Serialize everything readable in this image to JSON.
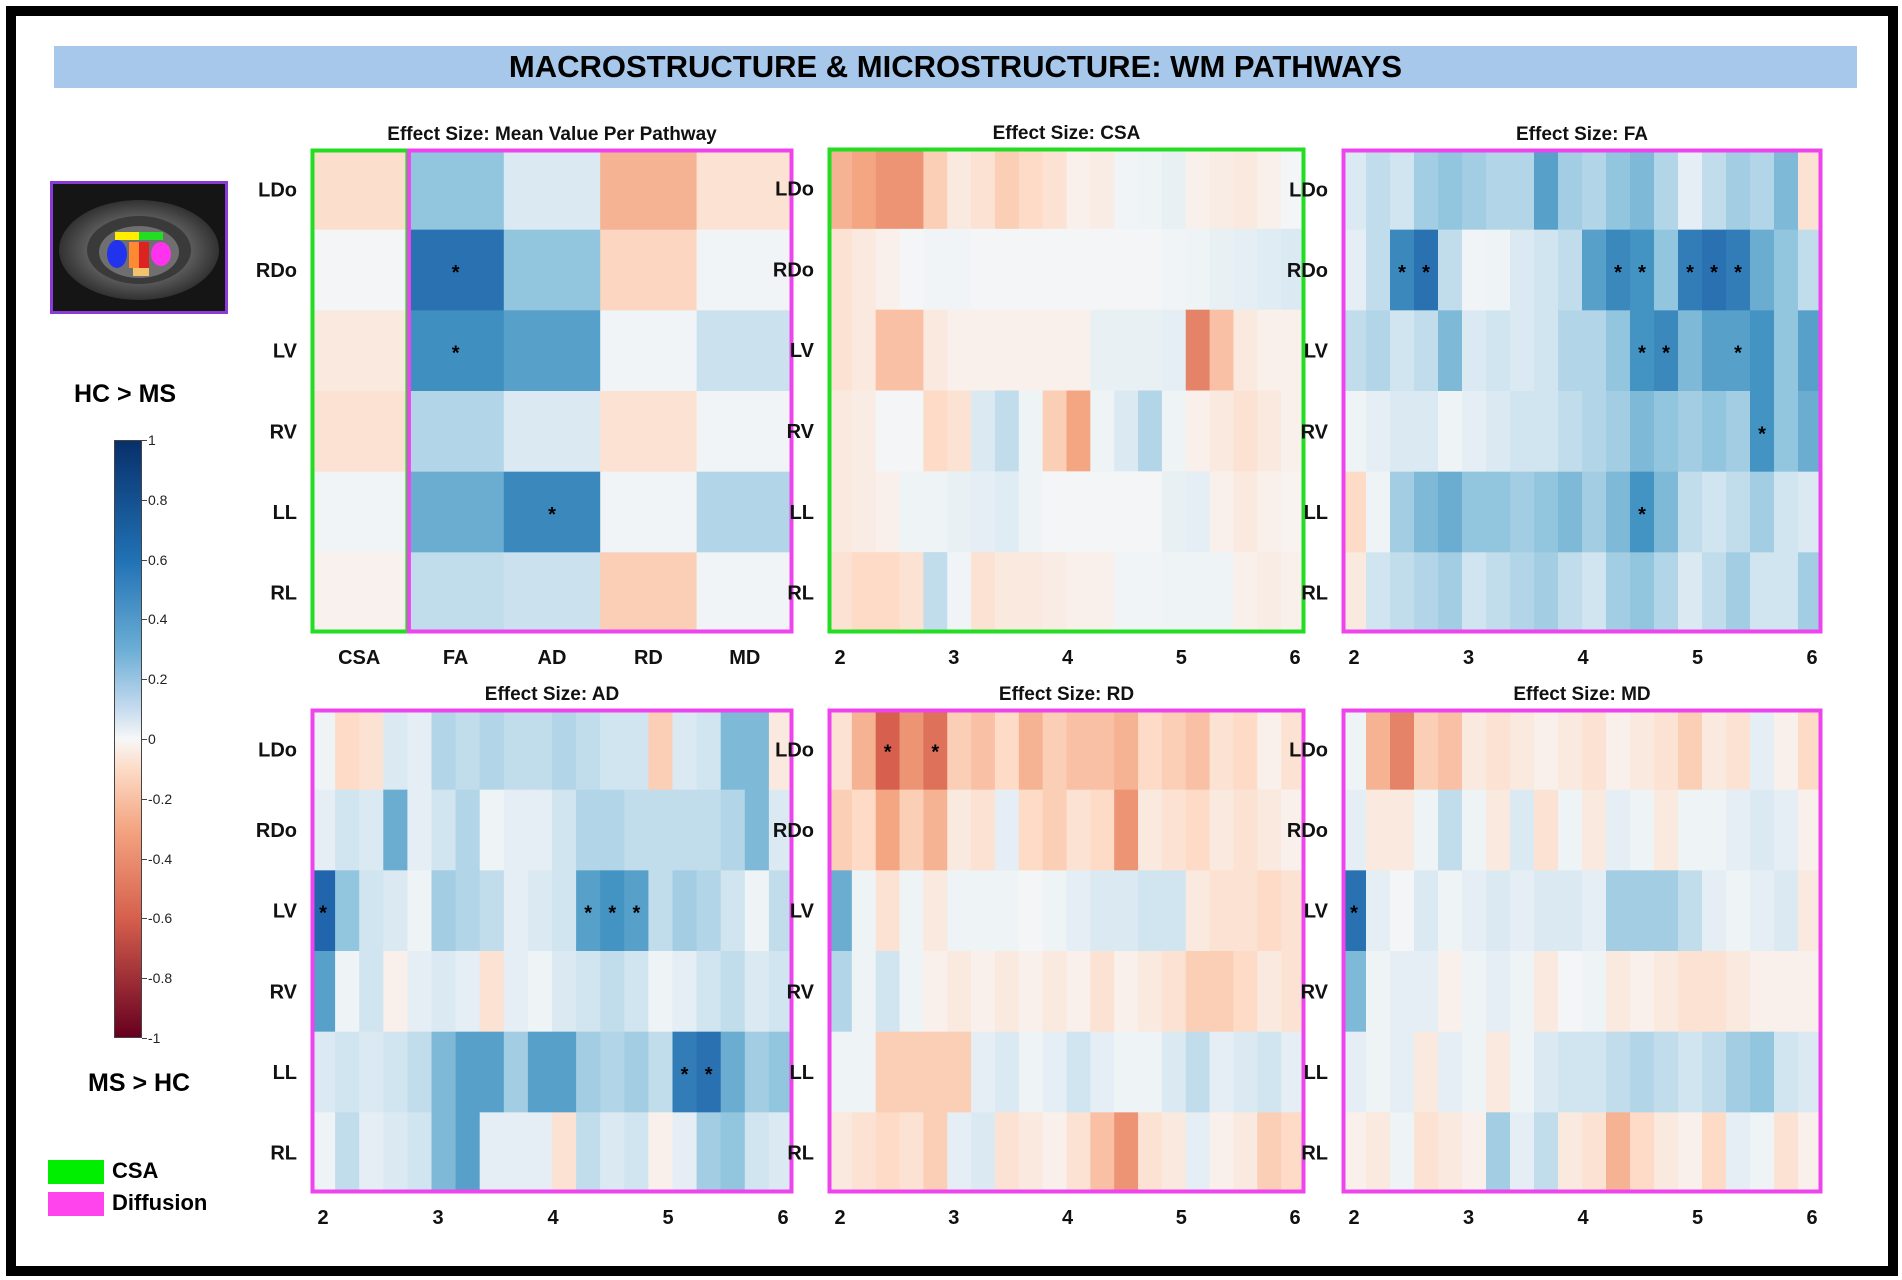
{
  "banner_title": "MACROSTRUCTURE & MICROSTRUCTURE: WM PATHWAYS",
  "colorbar": {
    "top_label": "HC > MS",
    "bottom_label": "MS > HC",
    "ticks": [
      "1",
      "0.8",
      "0.6",
      "0.4",
      "0.2",
      "0",
      "-0.2",
      "-0.4",
      "-0.6",
      "-0.8",
      "-1"
    ]
  },
  "legend": [
    {
      "label": "CSA",
      "color": "#00ee00"
    },
    {
      "label": "Diffusion",
      "color": "#ff44ee"
    }
  ],
  "colors": {
    "csa_border": "#22dd22",
    "diffusion_border": "#ee44ee",
    "thumb_border": "#8a3ad6"
  },
  "chart_data": [
    {
      "type": "heatmap",
      "title": "Effect Size: Mean Value Per Pathway",
      "rows": [
        "LDo",
        "RDo",
        "LV",
        "RV",
        "LL",
        "RL"
      ],
      "columns": [
        "CSA",
        "FA",
        "AD",
        "RD",
        "MD"
      ],
      "values": [
        [
          -0.18,
          0.4,
          0.15,
          -0.35,
          -0.15
        ],
        [
          0.02,
          0.75,
          0.4,
          -0.22,
          0.03
        ],
        [
          -0.1,
          0.62,
          0.55,
          0.03,
          0.22
        ],
        [
          -0.15,
          0.3,
          0.15,
          -0.15,
          0.03
        ],
        [
          0.03,
          0.5,
          0.65,
          0.03,
          0.3
        ],
        [
          -0.04,
          0.25,
          0.22,
          -0.25,
          0.03
        ]
      ],
      "significant": [
        [
          1,
          1
        ],
        [
          2,
          1
        ],
        [
          4,
          2
        ]
      ],
      "zlim": [
        -1,
        1
      ]
    },
    {
      "type": "heatmap",
      "title": "Effect Size: CSA",
      "rows": [
        "LDo",
        "RDo",
        "LV",
        "RV",
        "LL",
        "RL"
      ],
      "x": [
        2,
        2.2,
        2.4,
        2.6,
        2.8,
        3,
        3.2,
        3.4,
        3.6,
        3.8,
        4,
        4.2,
        4.4,
        4.6,
        4.8,
        5,
        5.2,
        5.4,
        5.6,
        5.8
      ],
      "x_ticks": [
        "2",
        "3",
        "4",
        "5",
        "6"
      ],
      "values": [
        [
          -0.35,
          -0.4,
          -0.45,
          -0.45,
          -0.25,
          -0.1,
          -0.15,
          -0.25,
          -0.2,
          -0.15,
          -0.05,
          -0.08,
          0.03,
          0.05,
          0.08,
          -0.05,
          -0.08,
          -0.1,
          -0.05,
          0.02
        ],
        [
          -0.15,
          -0.1,
          -0.05,
          0.02,
          0.03,
          0.03,
          0.02,
          0.02,
          0.02,
          0.02,
          0.02,
          0.02,
          0.02,
          0.02,
          0.03,
          0.05,
          0.08,
          0.1,
          0.12,
          0.15
        ],
        [
          -0.15,
          -0.1,
          -0.3,
          -0.3,
          -0.1,
          -0.05,
          -0.05,
          -0.05,
          -0.05,
          -0.05,
          -0.05,
          0.08,
          0.08,
          0.08,
          0.1,
          -0.5,
          -0.3,
          -0.1,
          -0.05,
          -0.05
        ],
        [
          -0.1,
          -0.08,
          0.02,
          0.02,
          -0.2,
          -0.15,
          0.15,
          0.25,
          0.05,
          -0.25,
          -0.4,
          0.05,
          0.15,
          0.3,
          0.05,
          -0.05,
          -0.1,
          -0.15,
          -0.1,
          -0.05
        ],
        [
          -0.1,
          -0.08,
          -0.05,
          0.05,
          0.05,
          0.08,
          0.1,
          0.12,
          0.05,
          0.02,
          0.02,
          0.02,
          0.02,
          0.02,
          0.08,
          0.1,
          -0.05,
          -0.1,
          -0.05,
          -0.03
        ],
        [
          -0.15,
          -0.2,
          -0.2,
          -0.15,
          0.25,
          0.03,
          -0.15,
          -0.1,
          -0.1,
          -0.08,
          -0.05,
          -0.05,
          0.03,
          0.03,
          0.05,
          0.05,
          0.05,
          -0.05,
          -0.08,
          -0.05
        ]
      ],
      "significant": [],
      "zlim": [
        -1,
        1
      ]
    },
    {
      "type": "heatmap",
      "title": "Effect Size: FA",
      "rows": [
        "LDo",
        "RDo",
        "LV",
        "RV",
        "LL",
        "RL"
      ],
      "x": [
        2,
        2.2,
        2.4,
        2.6,
        2.8,
        3,
        3.2,
        3.4,
        3.6,
        3.8,
        4,
        4.2,
        4.4,
        4.6,
        4.8,
        5,
        5.2,
        5.4,
        5.6,
        5.8
      ],
      "x_ticks": [
        "2",
        "3",
        "4",
        "5",
        "6"
      ],
      "values": [
        [
          0.15,
          0.25,
          0.2,
          0.35,
          0.4,
          0.35,
          0.3,
          0.3,
          0.55,
          0.35,
          0.3,
          0.4,
          0.45,
          0.3,
          0.1,
          0.25,
          0.35,
          0.3,
          0.45,
          -0.15
        ],
        [
          0.1,
          0.25,
          0.65,
          0.75,
          0.25,
          0.03,
          0.05,
          0.15,
          0.2,
          0.25,
          0.55,
          0.65,
          0.6,
          0.4,
          0.7,
          0.75,
          0.7,
          0.5,
          0.4,
          0.25
        ],
        [
          0.25,
          0.3,
          0.2,
          0.25,
          0.45,
          0.15,
          0.2,
          0.15,
          0.2,
          0.3,
          0.3,
          0.4,
          0.6,
          0.65,
          0.45,
          0.55,
          0.55,
          0.6,
          0.4,
          0.55
        ],
        [
          0.05,
          0.1,
          0.15,
          0.15,
          0.05,
          0.1,
          0.15,
          0.2,
          0.2,
          0.25,
          0.3,
          0.35,
          0.45,
          0.4,
          0.35,
          0.4,
          0.35,
          0.6,
          0.4,
          0.5
        ],
        [
          -0.2,
          0.05,
          0.35,
          0.45,
          0.5,
          0.4,
          0.4,
          0.35,
          0.4,
          0.45,
          0.35,
          0.45,
          0.6,
          0.45,
          0.25,
          0.2,
          0.25,
          0.35,
          0.2,
          0.15
        ],
        [
          -0.1,
          0.2,
          0.25,
          0.3,
          0.35,
          0.2,
          0.25,
          0.3,
          0.35,
          0.25,
          0.2,
          0.35,
          0.4,
          0.3,
          0.15,
          0.25,
          0.35,
          0.2,
          0.2,
          0.35
        ]
      ],
      "significant": [
        [
          1,
          2
        ],
        [
          1,
          3
        ],
        [
          1,
          11
        ],
        [
          1,
          12
        ],
        [
          1,
          14
        ],
        [
          1,
          15
        ],
        [
          1,
          16
        ],
        [
          2,
          12
        ],
        [
          2,
          13
        ],
        [
          2,
          16
        ],
        [
          3,
          17
        ],
        [
          4,
          12
        ]
      ],
      "zlim": [
        -1,
        1
      ]
    },
    {
      "type": "heatmap",
      "title": "Effect Size: AD",
      "rows": [
        "LDo",
        "RDo",
        "LV",
        "RV",
        "LL",
        "RL"
      ],
      "x": [
        2,
        2.2,
        2.4,
        2.6,
        2.8,
        3,
        3.2,
        3.4,
        3.6,
        3.8,
        4,
        4.2,
        4.4,
        4.6,
        4.8,
        5,
        5.2,
        5.4,
        5.6,
        5.8
      ],
      "x_ticks": [
        "2",
        "3",
        "4",
        "5",
        "6"
      ],
      "values": [
        [
          0.05,
          -0.2,
          -0.15,
          0.15,
          0.1,
          0.3,
          0.25,
          0.3,
          0.25,
          0.25,
          0.3,
          0.25,
          0.2,
          0.2,
          -0.25,
          0.15,
          0.2,
          0.45,
          0.45,
          -0.1
        ],
        [
          0.1,
          0.2,
          0.15,
          0.5,
          0.1,
          0.2,
          0.3,
          0.05,
          0.1,
          0.1,
          0.2,
          0.3,
          0.3,
          0.25,
          0.25,
          0.25,
          0.25,
          0.3,
          0.45,
          0.15
        ],
        [
          0.8,
          0.4,
          0.2,
          0.15,
          0.05,
          0.35,
          0.3,
          0.25,
          0.1,
          0.15,
          0.2,
          0.55,
          0.6,
          0.55,
          0.25,
          0.35,
          0.3,
          0.2,
          0.05,
          0.25
        ],
        [
          0.55,
          0.05,
          0.2,
          -0.05,
          0.1,
          0.15,
          0.1,
          -0.15,
          0.1,
          0.05,
          0.15,
          0.2,
          0.25,
          0.2,
          0.05,
          0.1,
          0.2,
          0.25,
          0.15,
          0.2
        ],
        [
          0.15,
          0.2,
          0.15,
          0.2,
          0.25,
          0.45,
          0.55,
          0.55,
          0.35,
          0.55,
          0.55,
          0.35,
          0.3,
          0.35,
          0.25,
          0.7,
          0.75,
          0.5,
          0.35,
          0.4
        ],
        [
          0.05,
          0.25,
          0.1,
          0.15,
          0.2,
          0.45,
          0.55,
          0.1,
          0.1,
          0.1,
          -0.15,
          0.25,
          0.15,
          0.2,
          -0.05,
          0.1,
          0.35,
          0.4,
          0.2,
          0.15
        ]
      ],
      "significant": [
        [
          2,
          0
        ],
        [
          2,
          11
        ],
        [
          2,
          12
        ],
        [
          2,
          13
        ],
        [
          4,
          15
        ],
        [
          4,
          16
        ]
      ],
      "zlim": [
        -1,
        1
      ]
    },
    {
      "type": "heatmap",
      "title": "Effect Size: RD",
      "rows": [
        "LDo",
        "RDo",
        "LV",
        "RV",
        "LL",
        "RL"
      ],
      "x": [
        2,
        2.2,
        2.4,
        2.6,
        2.8,
        3,
        3.2,
        3.4,
        3.6,
        3.8,
        4,
        4.2,
        4.4,
        4.6,
        4.8,
        5,
        5.2,
        5.4,
        5.6,
        5.8
      ],
      "x_ticks": [
        "2",
        "3",
        "4",
        "5",
        "6"
      ],
      "values": [
        [
          -0.15,
          -0.35,
          -0.6,
          -0.45,
          -0.55,
          -0.25,
          -0.3,
          -0.2,
          -0.35,
          -0.25,
          -0.3,
          -0.3,
          -0.35,
          -0.2,
          -0.25,
          -0.3,
          -0.15,
          -0.2,
          -0.05,
          -0.15
        ],
        [
          -0.25,
          -0.2,
          -0.4,
          -0.25,
          -0.35,
          -0.1,
          -0.15,
          0.1,
          -0.2,
          -0.25,
          -0.15,
          -0.2,
          -0.45,
          -0.1,
          -0.15,
          -0.2,
          -0.1,
          -0.15,
          -0.1,
          -0.05
        ],
        [
          0.5,
          0.05,
          -0.15,
          0.05,
          -0.1,
          0.05,
          0.05,
          0.05,
          0.02,
          0.05,
          0.1,
          0.15,
          0.15,
          0.2,
          0.2,
          -0.1,
          -0.15,
          -0.15,
          -0.2,
          -0.15
        ],
        [
          0.3,
          0.05,
          0.2,
          0.05,
          -0.05,
          -0.1,
          -0.05,
          -0.1,
          -0.05,
          -0.1,
          -0.05,
          -0.15,
          -0.05,
          -0.1,
          -0.15,
          -0.25,
          -0.25,
          -0.2,
          -0.1,
          -0.15
        ],
        [
          0.05,
          0.05,
          -0.25,
          -0.25,
          -0.25,
          -0.25,
          0.1,
          0.15,
          0.05,
          0.1,
          0.2,
          0.1,
          0.05,
          0.05,
          0.15,
          0.25,
          0.1,
          0.15,
          0.2,
          0.1
        ],
        [
          -0.1,
          -0.15,
          -0.2,
          -0.15,
          -0.25,
          0.1,
          0.15,
          -0.15,
          -0.1,
          -0.05,
          -0.15,
          -0.3,
          -0.45,
          -0.15,
          -0.1,
          0.1,
          -0.05,
          -0.1,
          -0.25,
          -0.2
        ]
      ],
      "significant": [
        [
          0,
          2
        ],
        [
          0,
          4
        ]
      ],
      "zlim": [
        -1,
        1
      ]
    },
    {
      "type": "heatmap",
      "title": "Effect Size: MD",
      "rows": [
        "LDo",
        "RDo",
        "LV",
        "RV",
        "LL",
        "RL"
      ],
      "x": [
        2,
        2.2,
        2.4,
        2.6,
        2.8,
        3,
        3.2,
        3.4,
        3.6,
        3.8,
        4,
        4.2,
        4.4,
        4.6,
        4.8,
        5,
        5.2,
        5.4,
        5.6,
        5.8
      ],
      "x_ticks": [
        "2",
        "3",
        "4",
        "5",
        "6"
      ],
      "values": [
        [
          0.05,
          -0.35,
          -0.5,
          -0.25,
          -0.3,
          -0.1,
          -0.15,
          -0.1,
          -0.05,
          -0.1,
          -0.15,
          -0.05,
          -0.1,
          -0.15,
          -0.25,
          -0.1,
          -0.15,
          0.1,
          -0.05,
          -0.2
        ],
        [
          0.1,
          -0.1,
          -0.1,
          0.05,
          0.25,
          0.05,
          -0.1,
          0.15,
          -0.15,
          0.05,
          -0.1,
          0.1,
          0.05,
          -0.1,
          0.05,
          0.05,
          0.1,
          0.15,
          0.1,
          -0.05
        ],
        [
          0.75,
          0.1,
          0.02,
          0.15,
          0.05,
          0.1,
          0.15,
          0.1,
          0.15,
          0.15,
          0.1,
          0.35,
          0.35,
          0.35,
          0.25,
          0.1,
          0.05,
          0.1,
          0.15,
          -0.1
        ],
        [
          0.45,
          0.05,
          0.1,
          0.1,
          -0.05,
          0.05,
          0.1,
          0.05,
          -0.1,
          0.02,
          0.05,
          -0.1,
          -0.05,
          -0.1,
          -0.15,
          -0.15,
          -0.1,
          -0.05,
          -0.05,
          -0.05
        ],
        [
          0.1,
          0.05,
          0.1,
          -0.1,
          0.1,
          0.05,
          -0.1,
          0.05,
          0.15,
          0.2,
          0.2,
          0.25,
          0.3,
          0.25,
          0.2,
          0.25,
          0.35,
          0.4,
          0.2,
          0.15
        ],
        [
          -0.05,
          -0.1,
          0.05,
          -0.15,
          -0.1,
          -0.05,
          0.35,
          0.1,
          0.25,
          -0.1,
          -0.15,
          -0.35,
          -0.2,
          -0.1,
          -0.05,
          -0.2,
          0.1,
          0.05,
          -0.15,
          -0.05
        ]
      ],
      "significant": [
        [
          2,
          0
        ]
      ],
      "zlim": [
        -1,
        1
      ]
    }
  ]
}
